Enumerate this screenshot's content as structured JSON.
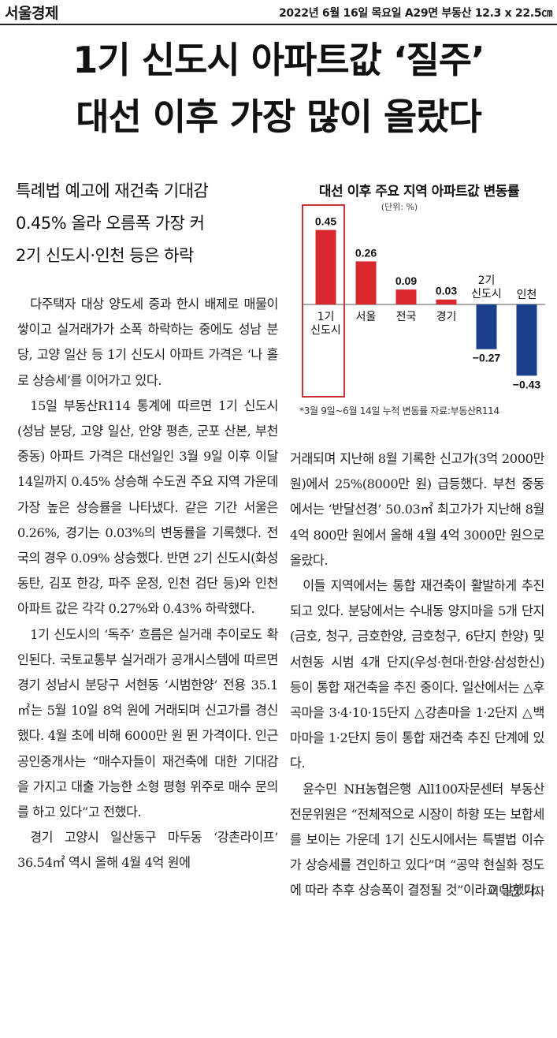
{
  "masthead": {
    "paper": "서울경제",
    "meta": "2022년 6월 16일 목요일 A29면 부동산 12.3 x 22.5㎝"
  },
  "headline": {
    "line1": "1기 신도시 아파트값 ‘질주’",
    "line2": "대선 이후 가장 많이 올랐다"
  },
  "subheads": [
    "특례법 예고에 재건축 기대감",
    "0.45% 올라 오름폭 가장 커",
    "2기 신도시·인천 등은 하락"
  ],
  "body_left": [
    "다주택자 대상 양도세 중과 한시 배제로 매물이 쌓이고 실거래가가 소폭 하락하는 중에도 성남 분당, 고양 일산 등 1기 신도시 아파트 가격은 ‘나 홀로 상승세’를 이어가고 있다.",
    "15일 부동산R114 통계에 따르면 1기 신도시(성남 분당, 고양 일산, 안양 평촌, 군포 산본, 부천 중동) 아파트 가격은 대선일인 3월 9일 이후 이달 14일까지 0.45% 상승해 수도권 주요 지역 가운데 가장 높은 상승률을 나타냈다. 같은 기간 서울은 0.26%, 경기는 0.03%의 변동률을 기록했다. 전국의 경우 0.09% 상승했다. 반면 2기 신도시(화성 동탄, 김포 한강, 파주 운정, 인천 검단 등)와 인천 아파트 값은 각각 0.27%와 0.43% 하락했다.",
    "1기 신도시의 ‘독주’ 흐름은 실거래 추이로도 확인된다. 국토교통부 실거래가 공개시스템에 따르면 경기 성남시 분당구 서현동 ‘시범한양’ 전용 35.1㎡는 5월 10일 8억 원에 거래되며 신고가를 경신했다. 4월 초에 비해 6000만 원 뛴 가격이다. 인근 공인중개사는 “매수자들이 재건축에 대한 기대감을 가지고 대출 가능한 소형 평형 위주로 매수 문의를 하고 있다”고 전했다.",
    "경기 고양시 일산동구 마두동 ‘강촌라이프’ 36.54㎡ 역시 올해 4월 4억 원에"
  ],
  "body_right": [
    "거래되며 지난해 8월 기록한 신고가(3억 2000만 원)에서 25%(8000만 원) 급등했다. 부천 중동에서는 ‘반달선경’ 50.03㎡ 최고가가 지난해 8월 4억 800만 원에서 올해 4월 4억 3000만 원으로 올랐다.",
    "이들 지역에서는 통합 재건축이 활발하게 추진되고 있다. 분당에서는 수내동 양지마을 5개 단지(금호, 청구, 금호한양, 금호청구, 6단지 한양) 및 서현동 시범 4개 단지(우성·현대·한양·삼성한신) 등이 통합 재건축을 추진 중이다. 일산에서는 △후곡마을 3·4·10·15단지 △강촌마을 1·2단지 △백마마을 1·2단지 등이 통합 재건축 추진 단계에 있다.",
    "윤수민 NH농협은행 All100자문센터 부동산전문위원은 “전체적으로 시장이 하향 또는 보합세를 보이는 가운데 1기 신도시에서는 특별법 이슈가 상승세를 견인하고 있다”며 “공약 현실화 정도에 따라 추후 상승폭이 결정될 것”이라고 말했다."
  ],
  "byline": "이덕연 기자",
  "chart_data": {
    "type": "bar",
    "title": "대선 이후 주요 지역 아파트값 변동률",
    "unit": "(단위: %)",
    "categories": [
      "1기\n신도시",
      "서울",
      "전국",
      "경기",
      "2기\n신도시",
      "인천"
    ],
    "values": [
      0.45,
      0.26,
      0.09,
      0.03,
      -0.27,
      -0.43
    ],
    "value_labels": [
      "0.45",
      "0.26",
      "0.09",
      "0.03",
      "−0.27",
      "−0.43"
    ],
    "highlighted_category": "1기\n신도시",
    "positive_color": "#d9272e",
    "negative_color": "#1b3f8b",
    "highlight_box_color": "#c8323a",
    "ylim": [
      -0.5,
      0.5
    ],
    "note": "*3월 9일~6월 14일 누적 변동률 자료:부동산R114"
  }
}
